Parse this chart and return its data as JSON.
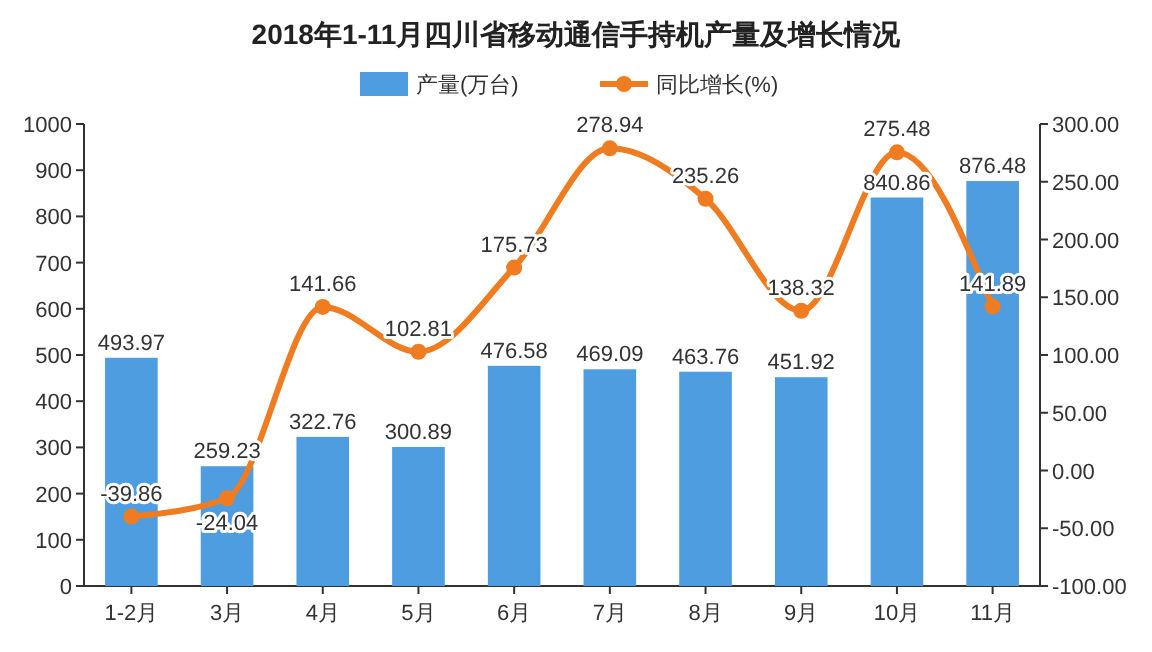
{
  "chart_data": {
    "type": "bar",
    "title": "2018年1-11月四川省移动通信手持机产量及增长情况",
    "categories": [
      "1-2月",
      "3月",
      "4月",
      "5月",
      "6月",
      "7月",
      "8月",
      "9月",
      "10月",
      "11月"
    ],
    "series": [
      {
        "name": "产量(万台)",
        "color": "#4d9de0",
        "values": [
          493.97,
          259.23,
          322.76,
          300.89,
          476.58,
          469.09,
          463.76,
          451.92,
          840.86,
          876.48
        ]
      },
      {
        "name": "同比增长(%)",
        "type": "line",
        "axis": "y2",
        "color": "#f07c22",
        "marker": "circle",
        "values": [
          -39.86,
          -24.04,
          141.66,
          102.81,
          175.73,
          278.94,
          235.26,
          138.32,
          275.48,
          141.89
        ]
      }
    ],
    "ylim": [
      0,
      1000
    ],
    "yticks": [
      0,
      100,
      200,
      300,
      400,
      500,
      600,
      700,
      800,
      900,
      1000
    ],
    "y2lim": [
      -100,
      300
    ],
    "y2ticks": [
      {
        "value": -100,
        "label": "-100.00"
      },
      {
        "value": -50,
        "label": "-50.00"
      },
      {
        "value": 0,
        "label": "0.00"
      },
      {
        "value": 50,
        "label": "50.00"
      },
      {
        "value": 100,
        "label": "100.00"
      },
      {
        "value": 150,
        "label": "150.00"
      },
      {
        "value": 200,
        "label": "200.00"
      },
      {
        "value": 250,
        "label": "250.00"
      },
      {
        "value": 300,
        "label": "300.00"
      }
    ],
    "data_labels": true,
    "legend": "top right",
    "grid": false
  }
}
